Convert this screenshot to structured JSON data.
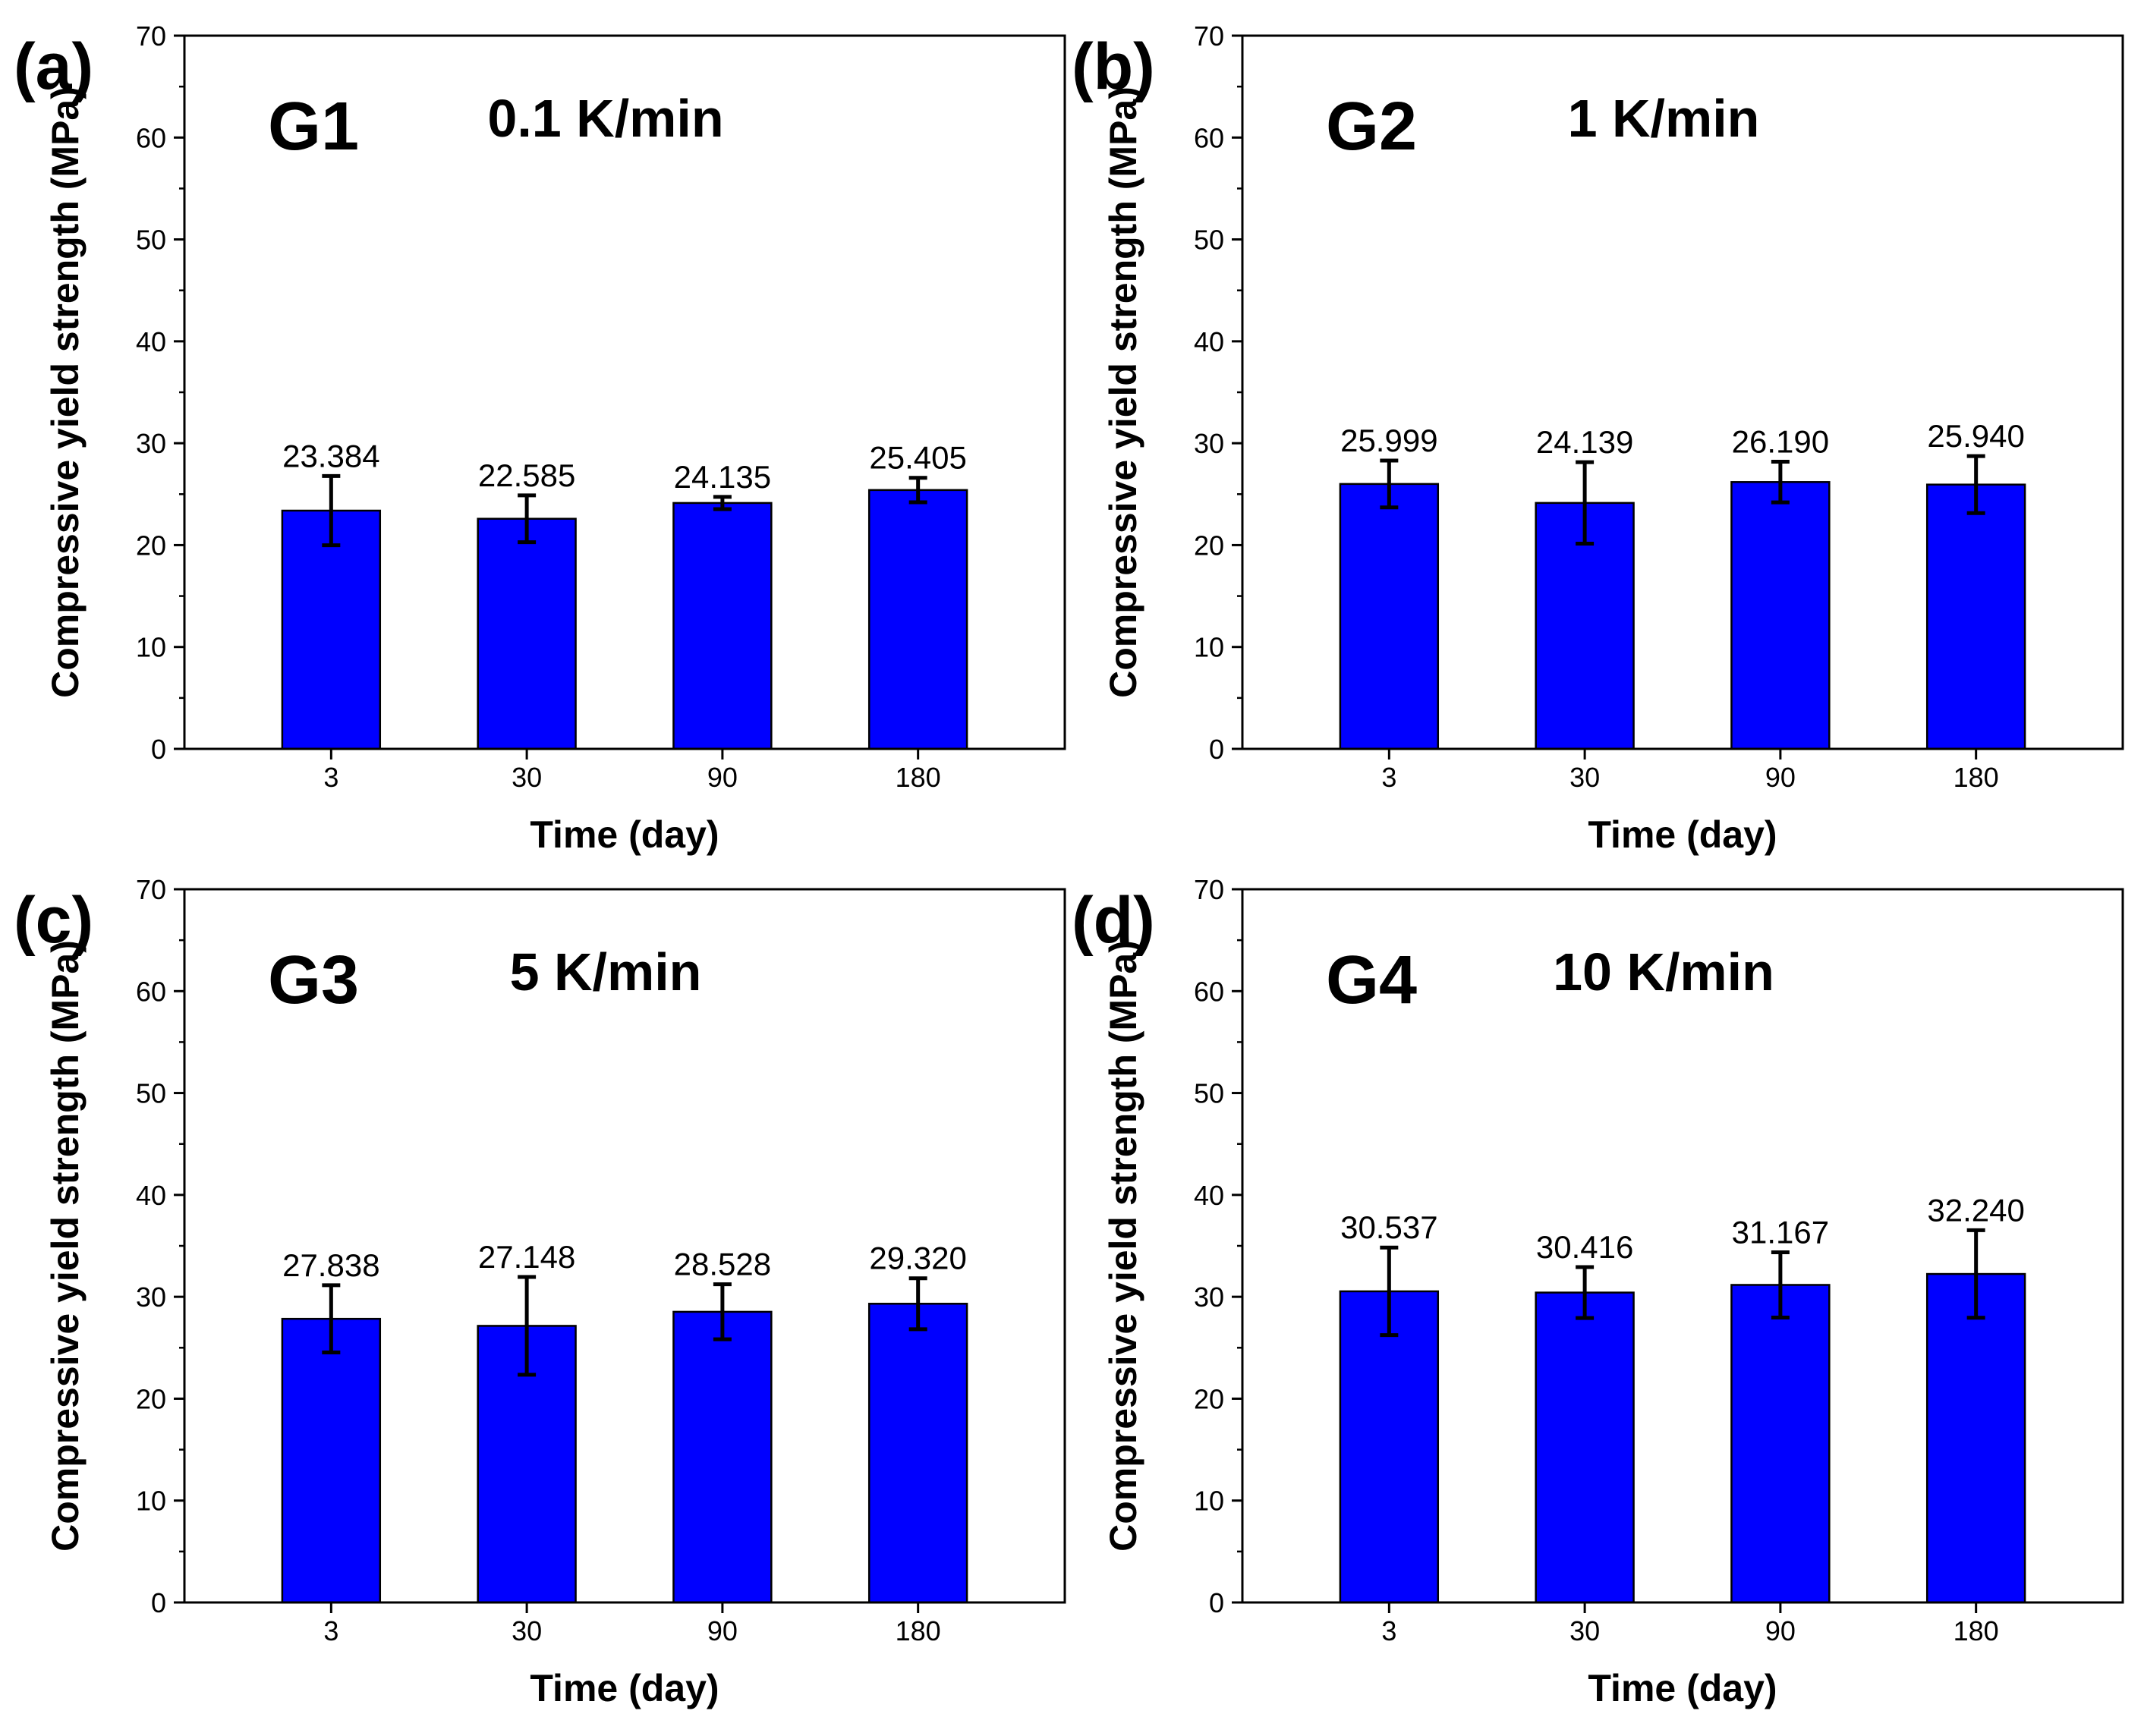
{
  "chart_data": [
    {
      "type": "bar",
      "panel": "(a)",
      "group": "G1",
      "rate": "0.1 K/min",
      "xlabel": "Time (day)",
      "ylabel": "Compressive yield strength (MPa)",
      "categories": [
        "3",
        "30",
        "90",
        "180"
      ],
      "values": [
        23.384,
        22.585,
        24.135,
        25.405
      ],
      "value_labels": [
        "23.384",
        "22.585",
        "24.135",
        "25.405"
      ],
      "errors": [
        3.4,
        2.3,
        0.6,
        1.2
      ],
      "ylim": [
        0,
        70
      ],
      "yticks": [
        0,
        10,
        20,
        30,
        40,
        50,
        60,
        70
      ],
      "ytick_labels": [
        "0",
        "10",
        "20",
        "30",
        "40",
        "50",
        "60",
        "70"
      ],
      "bar_color": "#0000ff"
    },
    {
      "type": "bar",
      "panel": "(b)",
      "group": "G2",
      "rate": "1 K/min",
      "xlabel": "Time (day)",
      "ylabel": "Compressive yield strength (MPa)",
      "categories": [
        "3",
        "30",
        "90",
        "180"
      ],
      "values": [
        25.999,
        24.139,
        26.19,
        25.94
      ],
      "value_labels": [
        "25.999",
        "24.139",
        "26.190",
        "25.940"
      ],
      "errors": [
        2.3,
        4.0,
        2.0,
        2.8
      ],
      "ylim": [
        0,
        70
      ],
      "yticks": [
        0,
        10,
        20,
        30,
        40,
        50,
        60,
        70
      ],
      "ytick_labels": [
        "0",
        "10",
        "20",
        "30",
        "40",
        "50",
        "60",
        "70"
      ],
      "bar_color": "#0000ff"
    },
    {
      "type": "bar",
      "panel": "(c)",
      "group": "G3",
      "rate": "5 K/min",
      "xlabel": "Time (day)",
      "ylabel": "Compressive yield strength (MPa)",
      "categories": [
        "3",
        "30",
        "90",
        "180"
      ],
      "values": [
        27.838,
        27.148,
        28.528,
        29.32
      ],
      "value_labels": [
        "27.838",
        "27.148",
        "28.528",
        "29.320"
      ],
      "errors": [
        3.3,
        4.8,
        2.7,
        2.5
      ],
      "ylim": [
        0,
        70
      ],
      "yticks": [
        0,
        10,
        20,
        30,
        40,
        50,
        60,
        70
      ],
      "ytick_labels": [
        "0",
        "10",
        "20",
        "30",
        "40",
        "50",
        "60",
        "70"
      ],
      "bar_color": "#0000ff"
    },
    {
      "type": "bar",
      "panel": "(d)",
      "group": "G4",
      "rate": "10 K/min",
      "xlabel": "Time (day)",
      "ylabel": "Compressive yield strength (MPa)",
      "categories": [
        "3",
        "30",
        "90",
        "180"
      ],
      "values": [
        30.537,
        30.416,
        31.167,
        32.24
      ],
      "value_labels": [
        "30.537",
        "30.416",
        "31.167",
        "32.240"
      ],
      "errors": [
        4.3,
        2.5,
        3.2,
        4.3
      ],
      "ylim": [
        0,
        70
      ],
      "yticks": [
        0,
        10,
        20,
        30,
        40,
        50,
        60,
        70
      ],
      "ytick_labels": [
        "0",
        "10",
        "20",
        "30",
        "40",
        "50",
        "60",
        "70"
      ],
      "bar_color": "#0000ff"
    }
  ]
}
